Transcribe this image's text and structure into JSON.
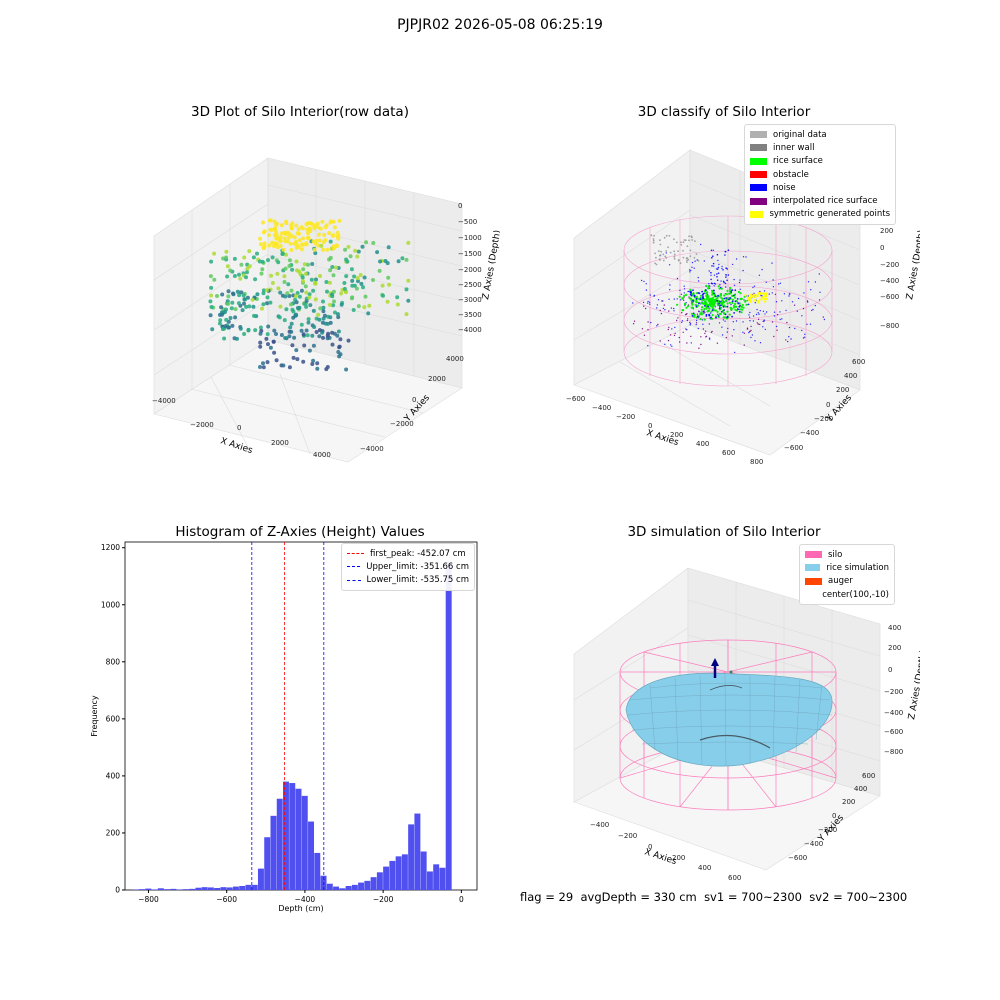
{
  "suptitle": "PJPJR02 2026-05-08 06:25:19",
  "panels": {
    "raw": {
      "title": "3D Plot of Silo Interior(row data)",
      "xlabel": "X Axies",
      "ylabel": "Y Axies",
      "zlabel": "Z Axies (Depth)",
      "x_ticks": [
        "−4000",
        "−2000",
        "0",
        "2000",
        "4000"
      ],
      "y_ticks": [
        "−4000",
        "−2000",
        "0",
        "2000",
        "4000"
      ],
      "z_ticks": [
        "0",
        "−500",
        "−1000",
        "−1500",
        "−2000",
        "−2500",
        "−3000",
        "−3500",
        "−4000"
      ]
    },
    "classify": {
      "title": "3D classify of Silo Interior",
      "xlabel": "X Axies",
      "ylabel": "Y Axies",
      "zlabel": "Z Axies (Depth)",
      "x_ticks": [
        "−600",
        "−400",
        "−200",
        "0",
        "200",
        "400",
        "600",
        "800"
      ],
      "y_ticks": [
        "−600",
        "−400",
        "−200",
        "0",
        "200",
        "400",
        "600"
      ],
      "z_ticks": [
        "400",
        "200",
        "0",
        "−200",
        "−400",
        "−600",
        "−800"
      ],
      "legend": [
        {
          "label": "original data",
          "color": "#b0b0b0"
        },
        {
          "label": "inner wall",
          "color": "#808080"
        },
        {
          "label": "rice surface",
          "color": "#00ff00"
        },
        {
          "label": "obstacle",
          "color": "#ff0000"
        },
        {
          "label": "noise",
          "color": "#0000ff"
        },
        {
          "label": "interpolated rice surface",
          "color": "#800080"
        },
        {
          "label": "symmetric generated points",
          "color": "#ffff00"
        }
      ]
    },
    "simulation": {
      "title": "3D simulation of Silo Interior",
      "xlabel": "X Axies",
      "ylabel": "Y Axies",
      "zlabel": "Z Axies (Depth)",
      "x_ticks": [
        "−400",
        "−200",
        "0",
        "200",
        "400",
        "600"
      ],
      "y_ticks": [
        "−600",
        "−400",
        "−200",
        "0",
        "200",
        "400",
        "600"
      ],
      "z_ticks": [
        "400",
        "200",
        "0",
        "−200",
        "−400",
        "−600",
        "−800"
      ],
      "legend": [
        {
          "label": "silo",
          "color": "#ff69b4"
        },
        {
          "label": "rice simulation",
          "color": "#87ceeb"
        },
        {
          "label": "auger",
          "color": "#ff4500"
        },
        {
          "label": "center(100,-10)",
          "color": "none"
        }
      ]
    }
  },
  "chart_data": [
    {
      "type": "bar",
      "title": "Histogram of Z-Axies (Height) Values",
      "xlabel": "Depth (cm)",
      "ylabel": "Frequency",
      "xlim": [
        -860,
        40
      ],
      "ylim": [
        0,
        1220
      ],
      "x_ticks": [
        -800,
        -600,
        -400,
        -200,
        0
      ],
      "y_ticks": [
        0,
        200,
        400,
        600,
        800,
        1000,
        1200
      ],
      "x_tick_labels": [
        "−800",
        "−600",
        "−400",
        "−200",
        "0"
      ],
      "bar_color": "#5050f0",
      "bin_width": 16,
      "bins_start": [
        -840,
        -824,
        -808,
        -792,
        -776,
        -760,
        -744,
        -728,
        -712,
        -696,
        -680,
        -664,
        -648,
        -632,
        -616,
        -600,
        -584,
        -568,
        -552,
        -536,
        -520,
        -504,
        -488,
        -472,
        -456,
        -440,
        -424,
        -408,
        -392,
        -376,
        -360,
        -344,
        -328,
        -312,
        -296,
        -280,
        -264,
        -248,
        -232,
        -216,
        -200,
        -184,
        -168,
        -152,
        -136,
        -120,
        -104,
        -88,
        -72,
        -56,
        -40,
        -24,
        -8
      ],
      "values": [
        2,
        3,
        5,
        2,
        6,
        3,
        4,
        2,
        3,
        4,
        8,
        10,
        9,
        7,
        10,
        9,
        12,
        14,
        18,
        18,
        75,
        185,
        260,
        320,
        380,
        375,
        355,
        330,
        240,
        130,
        50,
        22,
        12,
        6,
        14,
        18,
        26,
        32,
        45,
        62,
        82,
        102,
        118,
        125,
        230,
        268,
        135,
        65,
        90,
        78,
        1150,
        0,
        0
      ],
      "vlines": [
        {
          "name": "first_peak: -452.07 cm",
          "x": -452.07,
          "color": "#ff0000"
        },
        {
          "name": "Upper_limit: -351.66 cm",
          "x": -351.66,
          "color": "#0000ff"
        },
        {
          "name": "Lower_limit: -535.75 cm",
          "x": -535.75,
          "color": "#0000ff"
        }
      ]
    }
  ],
  "status": {
    "flag": "flag = 29",
    "avg_depth": "avgDepth = 330 cm",
    "sv1": "sv1 = 700~2300",
    "sv2": "sv2 = 700~2300"
  }
}
